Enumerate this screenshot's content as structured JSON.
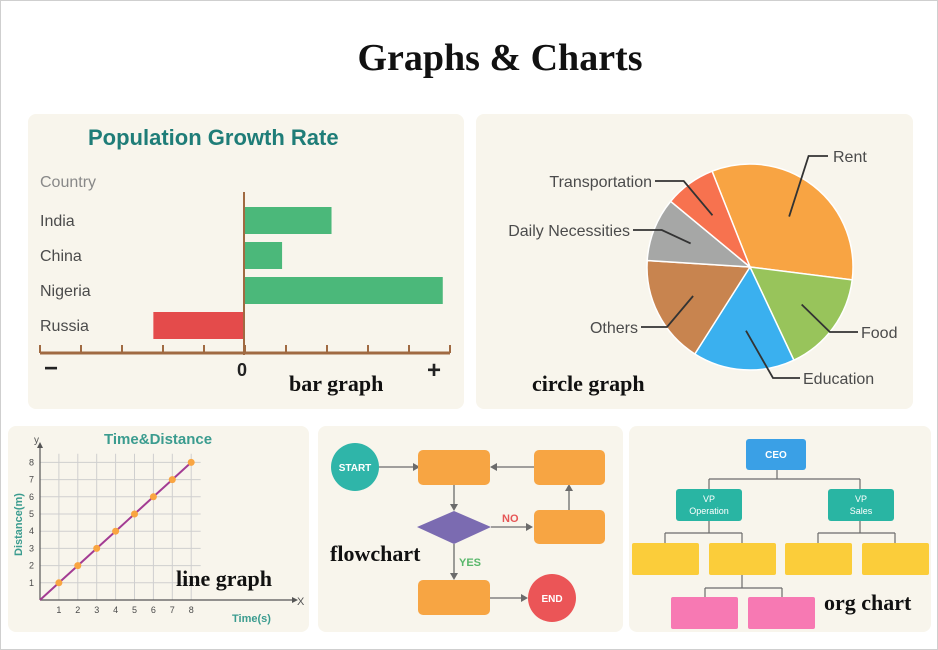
{
  "title": "Graphs & Charts",
  "captions": {
    "bar": "bar graph",
    "circle": "circle graph",
    "line": "line graph",
    "flow": "flowchart",
    "org": "org chart"
  },
  "bar_chart": {
    "title": "Population Growth Rate",
    "category_header": "Country",
    "axis_minus": "−",
    "axis_zero": "0",
    "axis_plus": "+",
    "colors": {
      "positive": "#4bb87a",
      "negative": "#e44b4b",
      "title": "#1f7d78"
    }
  },
  "pie_chart": {
    "colors": {
      "Rent": "#f8a443",
      "Food": "#98c45b",
      "Education": "#3ab0ef",
      "Others": "#c8844f",
      "Daily Necessities": "#a6a7a6",
      "Transportation": "#f7724f"
    }
  },
  "line_chart": {
    "title": "Time&Distance",
    "y_axis_letter": "y",
    "x_axis_letter": "X",
    "colors": {
      "line": "#a33c93",
      "point": "#f9a541",
      "title": "#3b9c8f"
    }
  },
  "flowchart": {
    "start": "START",
    "end": "END",
    "no": "NO",
    "yes": "YES",
    "colors": {
      "box": "#f7a543",
      "start": "#2fb5a9",
      "end": "#eb5557",
      "decision": "#7b6bb1"
    }
  },
  "org_chart": {
    "ceo": "CEO",
    "vp1_line1": "VP",
    "vp1_line2": "Operation",
    "vp2_line1": "VP",
    "vp2_line2": "Sales",
    "colors": {
      "ceo": "#3aa0e6",
      "vp": "#29b5a3",
      "box": "#fbcd3a",
      "leaf": "#f779b3"
    }
  },
  "chart_data": [
    {
      "type": "bar",
      "title": "Population Growth Rate",
      "categories": [
        "India",
        "China",
        "Nigeria",
        "Russia"
      ],
      "values": [
        2.1,
        0.9,
        4.8,
        -2.2
      ],
      "xlim": [
        -5,
        5
      ],
      "ylabel": "Country",
      "tick_count": 10
    },
    {
      "type": "pie",
      "slices": [
        {
          "label": "Rent",
          "value": 33
        },
        {
          "label": "Food",
          "value": 16
        },
        {
          "label": "Education",
          "value": 16
        },
        {
          "label": "Others",
          "value": 17
        },
        {
          "label": "Daily Necessities",
          "value": 10
        },
        {
          "label": "Transportation",
          "value": 8
        }
      ]
    },
    {
      "type": "line",
      "title": "Time&Distance",
      "xlabel": "Time(s)",
      "ylabel": "Distance(m)",
      "x": [
        0,
        1,
        2,
        3,
        4,
        5,
        6,
        7,
        8
      ],
      "y": [
        0,
        1,
        2,
        3,
        4,
        5,
        6,
        7,
        8
      ],
      "x_ticks": [
        1,
        2,
        3,
        4,
        5,
        6,
        7,
        8
      ],
      "y_ticks": [
        1,
        2,
        3,
        4,
        5,
        6,
        7,
        8
      ],
      "xlim": [
        0,
        9
      ],
      "ylim": [
        0,
        8.5
      ],
      "grid": true
    }
  ]
}
